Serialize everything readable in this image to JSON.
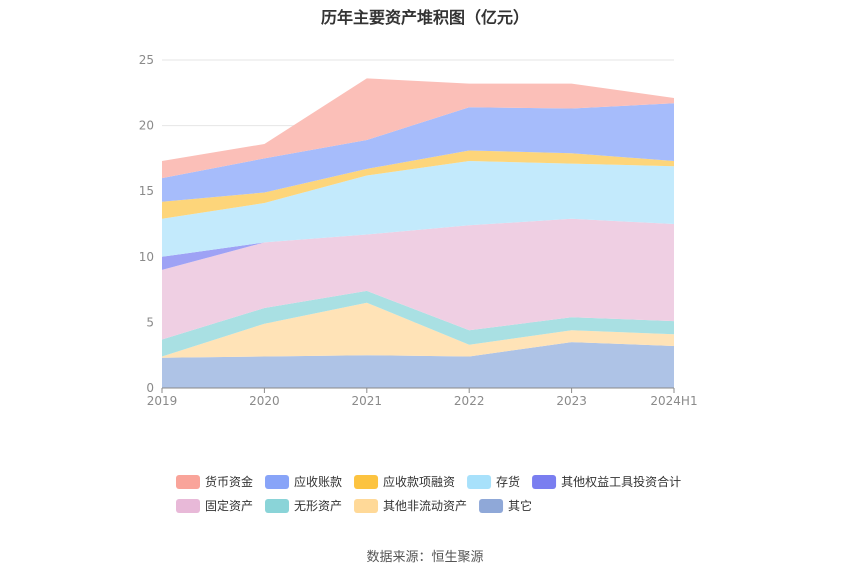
{
  "chart_data": {
    "type": "area",
    "stacked": true,
    "title": "历年主要资产堆积图（亿元）",
    "source": "数据来源：恒生聚源",
    "x": [
      "2019",
      "2020",
      "2021",
      "2022",
      "2023",
      "2024H1"
    ],
    "ylim": [
      0,
      25
    ],
    "yticks": [
      "0",
      "5",
      "10",
      "15",
      "20",
      "25"
    ],
    "grid": true,
    "legend_position": "bottom",
    "series": [
      {
        "name": "其它",
        "values": [
          2.3,
          2.4,
          2.5,
          2.4,
          3.5,
          3.2
        ],
        "color": "#8fa8d8",
        "fill": "#aec3e6"
      },
      {
        "name": "其他非流动资产",
        "values": [
          0.1,
          2.5,
          4.0,
          0.9,
          0.9,
          0.9
        ],
        "color": "#ffd998",
        "fill": "#ffe3b7"
      },
      {
        "name": "无形资产",
        "values": [
          1.3,
          1.2,
          0.9,
          1.1,
          1.0,
          1.0
        ],
        "color": "#8ad4d8",
        "fill": "#a9e0e3"
      },
      {
        "name": "固定资产",
        "values": [
          5.3,
          5.0,
          4.3,
          8.0,
          7.5,
          7.4
        ],
        "color": "#e8b9d8",
        "fill": "#efcfe3"
      },
      {
        "name": "其他权益工具投资合计",
        "values": [
          1.0,
          0.0,
          0.0,
          0.0,
          0.0,
          0.0
        ],
        "color": "#7a7ef0",
        "fill": "#9ea2f5"
      },
      {
        "name": "存货",
        "values": [
          2.9,
          3.0,
          4.5,
          4.9,
          4.2,
          4.4
        ],
        "color": "#a8e1fb",
        "fill": "#c3eafc"
      },
      {
        "name": "应收款项融资",
        "values": [
          1.3,
          0.8,
          0.5,
          0.8,
          0.8,
          0.4
        ],
        "color": "#fcc340",
        "fill": "#fdd57a"
      },
      {
        "name": "应收账款",
        "values": [
          1.8,
          2.6,
          2.2,
          3.3,
          3.4,
          4.4
        ],
        "color": "#88a4f8",
        "fill": "#a6bcfb"
      },
      {
        "name": "货币资金",
        "values": [
          1.3,
          1.1,
          4.7,
          1.8,
          1.9,
          0.4
        ],
        "color": "#f9a49a",
        "fill": "#fbbfb8"
      }
    ],
    "legend_order": [
      "货币资金",
      "应收账款",
      "应收款项融资",
      "存货",
      "其他权益工具投资合计",
      "固定资产",
      "无形资产",
      "其他非流动资产",
      "其它"
    ]
  }
}
